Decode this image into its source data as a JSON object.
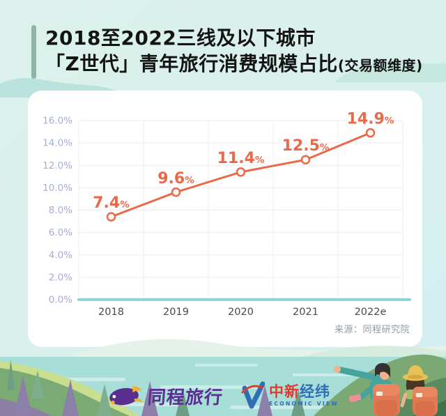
{
  "title": {
    "line1": "2018至2022三线及以下城市",
    "line2": "「Z世代」青年旅行消费规模占比",
    "line2_suffix": "(交易额维度)"
  },
  "chart_data": {
    "type": "line",
    "title": "2018至2022三线及以下城市「Z世代」青年旅行消费规模占比(交易额维度)",
    "categories": [
      "2018",
      "2019",
      "2020",
      "2021",
      "2022e"
    ],
    "values": [
      7.4,
      9.6,
      11.4,
      12.5,
      14.9
    ],
    "value_labels": [
      "7.4",
      "9.6",
      "11.4",
      "12.5",
      "14.9"
    ],
    "unit": "%",
    "xlabel": "",
    "ylabel": "",
    "ylim": [
      0,
      16
    ],
    "y_ticks": [
      0,
      2,
      4,
      6,
      8,
      10,
      12,
      14,
      16
    ],
    "y_tick_labels": [
      "0.0%",
      "2.0%",
      "4.0%",
      "6.0%",
      "8.0%",
      "10.0%",
      "12.0%",
      "14.0%",
      "16.0%"
    ],
    "grid": true,
    "legend": false,
    "line_color": "#E96A4A",
    "marker_fill": "#FDF7F2",
    "grid_color": "#ECEEF3",
    "baseline_color": "#8FD3DB",
    "y_tick_color": "#A4ACDC",
    "x_tick_color": "#4A4A4A"
  },
  "source": "来源：同程研究院",
  "footer": {
    "tongcheng_label": "同程旅行",
    "jwview_cn_red": "中新",
    "jwview_cn_blue": "经纬",
    "jwview_en": "ECONOMIC VIEW"
  },
  "colors": {
    "background_mint": "#DCF1EB",
    "title_accent": "#8FB5A9",
    "card": "#FFFFFF",
    "tongcheng_purple": "#5B2E91",
    "tongcheng_yellow": "#F2B231",
    "jwview_red": "#E03A2E",
    "jwview_blue": "#2F6DB5",
    "water": "#A8DED8"
  }
}
